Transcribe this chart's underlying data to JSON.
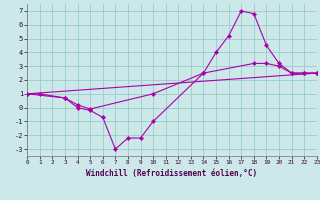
{
  "bg_color": "#cce8e8",
  "line_color": "#aa00aa",
  "grid_color": "#99cccc",
  "line1_x": [
    0,
    1,
    3,
    4,
    5,
    6,
    7,
    8,
    9,
    10,
    14,
    15,
    16,
    17,
    18,
    19,
    20,
    21,
    22,
    23
  ],
  "line1_y": [
    1.0,
    1.0,
    0.7,
    0.0,
    -0.2,
    -0.7,
    -3.0,
    -2.2,
    -2.2,
    -1.0,
    2.5,
    4.0,
    5.2,
    7.0,
    6.8,
    4.5,
    3.2,
    2.5,
    2.5,
    2.5
  ],
  "line2_x": [
    0,
    3,
    4,
    5,
    10,
    14,
    18,
    19,
    20,
    21,
    22,
    23
  ],
  "line2_y": [
    1.0,
    0.7,
    0.2,
    -0.1,
    1.0,
    2.5,
    3.2,
    3.2,
    3.0,
    2.5,
    2.5,
    2.5
  ],
  "line3_x": [
    0,
    23
  ],
  "line3_y": [
    1.0,
    2.5
  ],
  "xlim": [
    0,
    23
  ],
  "ylim": [
    -3.5,
    7.5
  ],
  "xticks": [
    0,
    1,
    2,
    3,
    4,
    5,
    6,
    7,
    8,
    9,
    10,
    11,
    12,
    13,
    14,
    15,
    16,
    17,
    18,
    19,
    20,
    21,
    22,
    23
  ],
  "yticks": [
    -3,
    -2,
    -1,
    0,
    1,
    2,
    3,
    4,
    5,
    6,
    7
  ],
  "xlabel": "Windchill (Refroidissement éolien,°C)",
  "xticklabels": [
    "0",
    "1",
    "2",
    "3",
    "4",
    "5",
    "6",
    "7",
    "8",
    "9",
    "10",
    "11",
    "12",
    "13",
    "14",
    "15",
    "16",
    "17",
    "18",
    "19",
    "20",
    "21",
    "22",
    "23"
  ]
}
